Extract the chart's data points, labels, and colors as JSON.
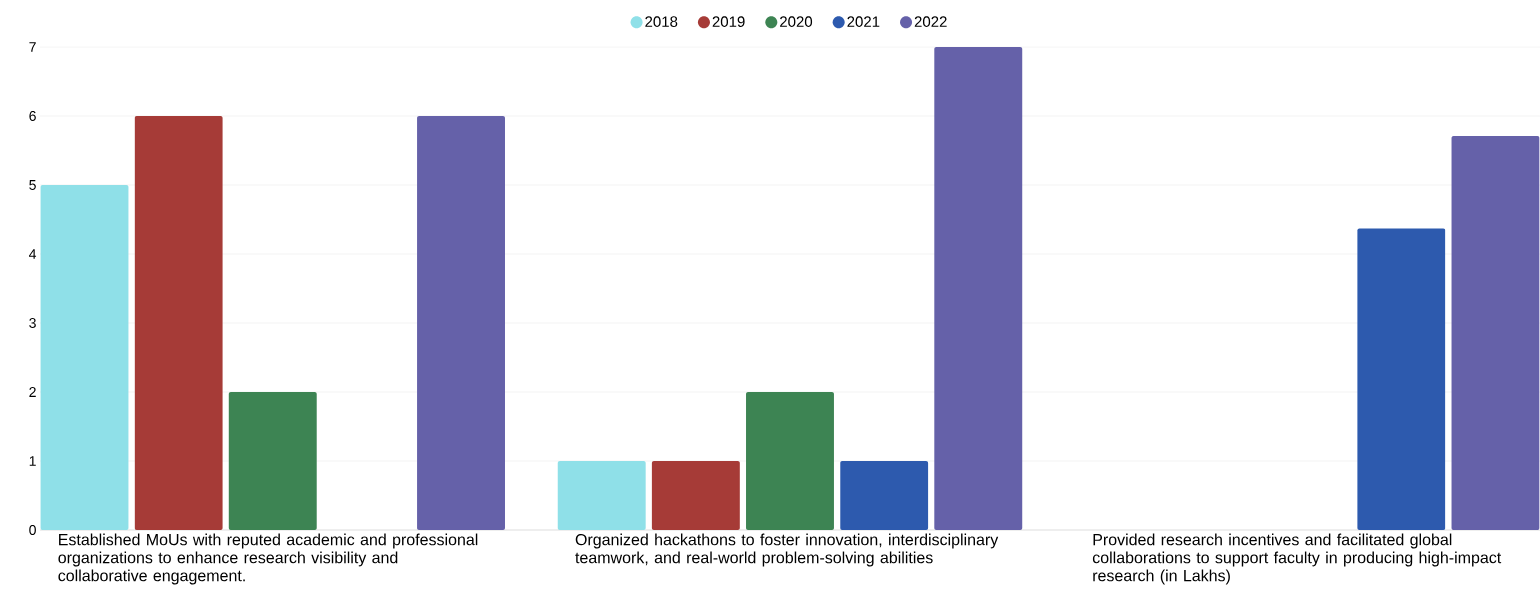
{
  "chart_data": {
    "type": "bar",
    "categories": [
      "Established MoUs with reputed academic and professional organizations to enhance research visibility and collaborative engagement.",
      "Organized hackathons to foster innovation, interdisciplinary teamwork, and real-world problem-solving abilities",
      "Provided research incentives and facilitated global collaborations to support faculty in producing high-impact research (in Lakhs)"
    ],
    "series": [
      {
        "name": "2018",
        "color": "#8fe0e8",
        "values": [
          5,
          1,
          null
        ]
      },
      {
        "name": "2019",
        "color": "#a63b37",
        "values": [
          6,
          1,
          null
        ]
      },
      {
        "name": "2020",
        "color": "#3d8453",
        "values": [
          2,
          2,
          null
        ]
      },
      {
        "name": "2021",
        "color": "#2d5aae",
        "values": [
          null,
          1,
          4.37
        ]
      },
      {
        "name": "2022",
        "color": "#6561a9",
        "values": [
          6,
          7,
          5.71
        ]
      }
    ],
    "ylim": [
      0,
      7
    ],
    "yticks": [
      0,
      1,
      2,
      3,
      4,
      5,
      6,
      7
    ],
    "grid": "y",
    "legend": "top"
  }
}
